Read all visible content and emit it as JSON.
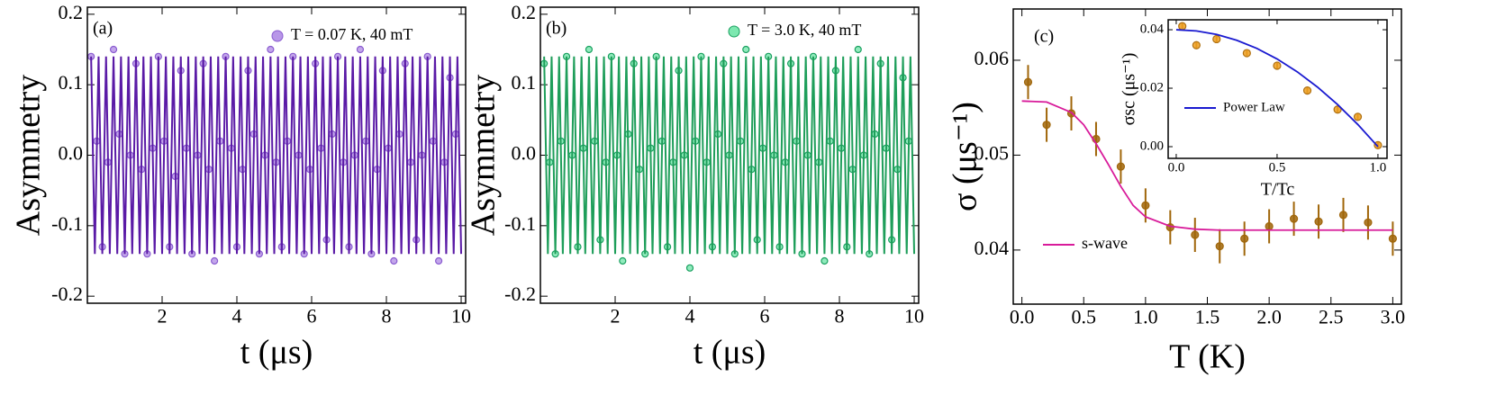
{
  "chart_data": [
    {
      "type": "scatter",
      "panel_label": "(a)",
      "y_label": "Asymmetry",
      "x_label": "t (μs)",
      "xlim": [
        0,
        10.12
      ],
      "ylim": [
        -0.21,
        0.21
      ],
      "xticks": [
        2,
        4,
        6,
        8,
        10
      ],
      "yticks": [
        0.2,
        0.1,
        {
          "value": 0,
          "label": "0.0"
        },
        -0.1,
        -0.2
      ],
      "series": [
        {
          "name": "T = 0.07 K, 40 mT",
          "mode": "markers",
          "color": "#b896e8",
          "edge": "#8a5cd0",
          "x": [
            0.1,
            0.25,
            0.4,
            0.55,
            0.7,
            0.85,
            1,
            1.15,
            1.3,
            1.45,
            1.6,
            1.75,
            1.9,
            2.05,
            2.2,
            2.35,
            2.5,
            2.65,
            2.8,
            2.95,
            3.1,
            3.25,
            3.4,
            3.55,
            3.7,
            3.85,
            4,
            4.15,
            4.3,
            4.45,
            4.6,
            4.75,
            4.9,
            5.05,
            5.2,
            5.35,
            5.5,
            5.65,
            5.8,
            5.95,
            6.1,
            6.25,
            6.4,
            6.55,
            6.7,
            6.85,
            7,
            7.15,
            7.3,
            7.45,
            7.6,
            7.75,
            7.9,
            8.05,
            8.2,
            8.35,
            8.5,
            8.65,
            8.8,
            8.95,
            9.1,
            9.25,
            9.4,
            9.55,
            9.7,
            9.85
          ],
          "values": [
            0.14,
            0.02,
            -0.13,
            -0.01,
            0.15,
            0.03,
            -0.14,
            0.0,
            0.13,
            -0.02,
            -0.14,
            0.01,
            0.14,
            0.02,
            -0.13,
            -0.03,
            0.12,
            0.01,
            -0.14,
            0.0,
            0.13,
            -0.02,
            -0.15,
            0.02,
            0.14,
            0.01,
            -0.13,
            -0.02,
            0.12,
            0.03,
            -0.14,
            0.0,
            0.15,
            -0.01,
            -0.13,
            0.02,
            0.14,
            0.0,
            -0.14,
            -0.02,
            0.13,
            0.01,
            -0.12,
            0.03,
            0.14,
            -0.01,
            -0.13,
            0.0,
            0.15,
            0.02,
            -0.14,
            -0.02,
            0.12,
            0.01,
            -0.15,
            0.03,
            0.13,
            -0.01,
            -0.12,
            0.0,
            0.14,
            0.02,
            -0.15,
            -0.01,
            0.11,
            0.03
          ]
        },
        {
          "mode": "line",
          "color": "#5a1aa6",
          "x": [
            0.1,
            0.2,
            0.3,
            0.4,
            0.5,
            0.6,
            0.7,
            0.8,
            0.9,
            1,
            1.1,
            1.2,
            1.3,
            1.4,
            1.5,
            1.6,
            1.7,
            1.8,
            1.9,
            2,
            2.1,
            2.2,
            2.3,
            2.4,
            2.5,
            2.6,
            2.7,
            2.8,
            2.9,
            3,
            3.1,
            3.2,
            3.3,
            3.4,
            3.5,
            3.6,
            3.7,
            3.8,
            3.9,
            4,
            4.1,
            4.2,
            4.3,
            4.4,
            4.5,
            4.6,
            4.7,
            4.8,
            4.9,
            5,
            5.1,
            5.2,
            5.3,
            5.4,
            5.5,
            5.6,
            5.7,
            5.8,
            5.9,
            6,
            6.1,
            6.2,
            6.3,
            6.4,
            6.5,
            6.6,
            6.7,
            6.8,
            6.9,
            7,
            7.1,
            7.2,
            7.3,
            7.4,
            7.5,
            7.6,
            7.7,
            7.8,
            7.9,
            8,
            8.1,
            8.2,
            8.3,
            8.4,
            8.5,
            8.6,
            8.7,
            8.8,
            8.9,
            9,
            9.1,
            9.2,
            9.3,
            9.4,
            9.5,
            9.6,
            9.7,
            9.8,
            9.9,
            10
          ],
          "values": [
            0.14,
            -0.14,
            0.14,
            -0.14,
            0.14,
            -0.14,
            0.14,
            -0.14,
            0.14,
            -0.14,
            0.14,
            -0.14,
            0.14,
            -0.14,
            0.14,
            -0.14,
            0.14,
            -0.14,
            0.14,
            -0.14,
            0.14,
            -0.14,
            0.14,
            -0.14,
            0.14,
            -0.14,
            0.14,
            -0.14,
            0.14,
            -0.14,
            0.14,
            -0.14,
            0.14,
            -0.14,
            0.14,
            -0.14,
            0.14,
            -0.14,
            0.14,
            -0.14,
            0.14,
            -0.14,
            0.14,
            -0.14,
            0.14,
            -0.14,
            0.14,
            -0.14,
            0.14,
            -0.14,
            0.14,
            -0.14,
            0.14,
            -0.14,
            0.14,
            -0.14,
            0.14,
            -0.14,
            0.14,
            -0.14,
            0.14,
            -0.14,
            0.14,
            -0.14,
            0.14,
            -0.14,
            0.14,
            -0.14,
            0.14,
            -0.14,
            0.14,
            -0.14,
            0.14,
            -0.14,
            0.14,
            -0.14,
            0.14,
            -0.14,
            0.14,
            -0.14,
            0.14,
            -0.14,
            0.14,
            -0.14,
            0.14,
            -0.14,
            0.14,
            -0.14,
            0.14,
            -0.14,
            0.14,
            -0.14,
            0.14,
            -0.14,
            0.14,
            -0.14,
            0.14,
            -0.14,
            0.14,
            -0.14
          ]
        }
      ]
    },
    {
      "type": "scatter",
      "panel_label": "(b)",
      "y_label": "Asymmetry",
      "x_label": "t (μs)",
      "xlim": [
        0,
        10.12
      ],
      "ylim": [
        -0.21,
        0.21
      ],
      "xticks": [
        2,
        4,
        6,
        8,
        10
      ],
      "yticks": [
        0.2,
        0.1,
        {
          "value": 0,
          "label": "0.0"
        },
        -0.1,
        -0.2
      ],
      "series": [
        {
          "name": "T = 3.0 K, 40 mT",
          "mode": "markers",
          "color": "#7de8b0",
          "edge": "#1aa060",
          "x": [
            0.1,
            0.25,
            0.4,
            0.55,
            0.7,
            0.85,
            1,
            1.15,
            1.3,
            1.45,
            1.6,
            1.75,
            1.9,
            2.05,
            2.2,
            2.35,
            2.5,
            2.65,
            2.8,
            2.95,
            3.1,
            3.25,
            3.4,
            3.55,
            3.7,
            3.85,
            4,
            4.15,
            4.3,
            4.45,
            4.6,
            4.75,
            4.9,
            5.05,
            5.2,
            5.35,
            5.5,
            5.65,
            5.8,
            5.95,
            6.1,
            6.25,
            6.4,
            6.55,
            6.7,
            6.85,
            7,
            7.15,
            7.3,
            7.45,
            7.6,
            7.75,
            7.9,
            8.05,
            8.2,
            8.35,
            8.5,
            8.65,
            8.8,
            8.95,
            9.1,
            9.25,
            9.4,
            9.55,
            9.7,
            9.85
          ],
          "values": [
            0.13,
            -0.01,
            -0.14,
            0.02,
            0.14,
            0.0,
            -0.13,
            0.01,
            0.15,
            0.02,
            -0.12,
            -0.01,
            0.14,
            0.0,
            -0.15,
            0.03,
            0.13,
            -0.02,
            -0.14,
            0.01,
            0.14,
            0.02,
            -0.13,
            -0.01,
            0.12,
            0.0,
            -0.16,
            0.02,
            0.14,
            -0.01,
            -0.13,
            0.03,
            0.13,
            0.0,
            -0.14,
            0.02,
            0.15,
            -0.02,
            -0.12,
            0.01,
            0.14,
            0.0,
            -0.13,
            -0.01,
            0.13,
            0.02,
            -0.14,
            0.0,
            0.14,
            -0.01,
            -0.15,
            0.02,
            0.12,
            0.01,
            -0.13,
            -0.02,
            0.15,
            0.0,
            -0.14,
            0.03,
            0.13,
            0.01,
            -0.12,
            -0.02,
            0.11,
            0.02
          ]
        },
        {
          "mode": "line",
          "color": "#1e9e5a",
          "x": [
            0.1,
            0.2,
            0.3,
            0.4,
            0.5,
            0.6,
            0.7,
            0.8,
            0.9,
            1,
            1.1,
            1.2,
            1.3,
            1.4,
            1.5,
            1.6,
            1.7,
            1.8,
            1.9,
            2,
            2.1,
            2.2,
            2.3,
            2.4,
            2.5,
            2.6,
            2.7,
            2.8,
            2.9,
            3,
            3.1,
            3.2,
            3.3,
            3.4,
            3.5,
            3.6,
            3.7,
            3.8,
            3.9,
            4,
            4.1,
            4.2,
            4.3,
            4.4,
            4.5,
            4.6,
            4.7,
            4.8,
            4.9,
            5,
            5.1,
            5.2,
            5.3,
            5.4,
            5.5,
            5.6,
            5.7,
            5.8,
            5.9,
            6,
            6.1,
            6.2,
            6.3,
            6.4,
            6.5,
            6.6,
            6.7,
            6.8,
            6.9,
            7,
            7.1,
            7.2,
            7.3,
            7.4,
            7.5,
            7.6,
            7.7,
            7.8,
            7.9,
            8,
            8.1,
            8.2,
            8.3,
            8.4,
            8.5,
            8.6,
            8.7,
            8.8,
            8.9,
            9,
            9.1,
            9.2,
            9.3,
            9.4,
            9.5,
            9.6,
            9.7,
            9.8,
            9.9,
            10
          ],
          "values": [
            0.14,
            -0.14,
            0.14,
            -0.14,
            0.14,
            -0.14,
            0.14,
            -0.14,
            0.14,
            -0.14,
            0.14,
            -0.14,
            0.14,
            -0.14,
            0.14,
            -0.14,
            0.14,
            -0.14,
            0.14,
            -0.14,
            0.14,
            -0.14,
            0.14,
            -0.14,
            0.14,
            -0.14,
            0.14,
            -0.14,
            0.14,
            -0.14,
            0.14,
            -0.14,
            0.14,
            -0.14,
            0.14,
            -0.14,
            0.14,
            -0.14,
            0.14,
            -0.14,
            0.14,
            -0.14,
            0.14,
            -0.14,
            0.14,
            -0.14,
            0.14,
            -0.14,
            0.14,
            -0.14,
            0.14,
            -0.14,
            0.14,
            -0.14,
            0.14,
            -0.14,
            0.14,
            -0.14,
            0.14,
            -0.14,
            0.14,
            -0.14,
            0.14,
            -0.14,
            0.14,
            -0.14,
            0.14,
            -0.14,
            0.14,
            -0.14,
            0.14,
            -0.14,
            0.14,
            -0.14,
            0.14,
            -0.14,
            0.14,
            -0.14,
            0.14,
            -0.14,
            0.14,
            -0.14,
            0.14,
            -0.14,
            0.14,
            -0.14,
            0.14,
            -0.14,
            0.14,
            -0.14,
            0.14,
            -0.14,
            0.14,
            -0.14,
            0.14,
            -0.14,
            0.14,
            -0.14,
            0.14,
            -0.14
          ]
        }
      ]
    },
    {
      "type": "scatter",
      "panel_label": "(c)",
      "y_label": "σ (μs⁻¹)",
      "x_label": "T (K)",
      "xlim": [
        -0.07,
        3.07
      ],
      "ylim": [
        0.0343,
        0.0654
      ],
      "xticks": [
        {
          "value": 0,
          "label": "0.0"
        },
        0.5,
        {
          "value": 1,
          "label": "1.0"
        },
        1.5,
        {
          "value": 2,
          "label": "2.0"
        },
        2.5,
        {
          "value": 3,
          "label": "3.0"
        }
      ],
      "yticks": [
        0.04,
        0.05,
        0.06
      ],
      "series": [
        {
          "mode": "markers",
          "color": "#a0660a",
          "edge": "#a0660a",
          "x": [
            0.05,
            0.2,
            0.4,
            0.6,
            0.8,
            1.0,
            1.2,
            1.4,
            1.6,
            1.8,
            2.0,
            2.2,
            2.4,
            2.6,
            2.8,
            3.0
          ],
          "values": [
            0.0577,
            0.0532,
            0.0544,
            0.0517,
            0.0488,
            0.0447,
            0.0424,
            0.0416,
            0.0404,
            0.0412,
            0.0425,
            0.0433,
            0.043,
            0.0437,
            0.0429,
            0.0412
          ],
          "errors": [
            0.0018,
            0.0018,
            0.0018,
            0.0018,
            0.0018,
            0.0018,
            0.0018,
            0.0018,
            0.0018,
            0.0018,
            0.0018,
            0.0018,
            0.0018,
            0.0018,
            0.0018,
            0.0018
          ]
        },
        {
          "name": "s-wave",
          "mode": "line",
          "color": "#d81b9a",
          "x": [
            0,
            0.2,
            0.4,
            0.5,
            0.6,
            0.7,
            0.8,
            0.9,
            1.0,
            1.2,
            1.4,
            1.6,
            2.0,
            3.0
          ],
          "values": [
            0.0557,
            0.0556,
            0.0545,
            0.0532,
            0.0512,
            0.049,
            0.0467,
            0.0447,
            0.0435,
            0.0425,
            0.0422,
            0.0421,
            0.0421,
            0.0421
          ]
        }
      ]
    },
    {
      "type": "scatter",
      "x_label": "T/Tc",
      "y_label": "σsc (μs⁻¹)",
      "xlim": [
        -0.04,
        1.045
      ],
      "ylim": [
        -0.004,
        0.0434
      ],
      "xticks": [
        {
          "value": 0,
          "label": "0.0"
        },
        0.5,
        {
          "value": 1,
          "label": "1.0"
        }
      ],
      "yticks": [
        {
          "value": 0,
          "label": "0.00"
        },
        {
          "value": 0.02,
          "label": "0.02"
        },
        {
          "value": 0.04,
          "label": "0.04"
        }
      ],
      "series": [
        {
          "mode": "markers",
          "color": "#f0a020",
          "edge": "#b07010",
          "x": [
            0.03,
            0.1,
            0.2,
            0.35,
            0.5,
            0.65,
            0.8,
            0.9,
            1.0
          ],
          "values": [
            0.0412,
            0.0347,
            0.0368,
            0.032,
            0.0277,
            0.0192,
            0.0127,
            0.0102,
            0.0005
          ],
          "errors": [
            0.001,
            0.001,
            0.001,
            0.001,
            0.001,
            0.001,
            0.001,
            0.001,
            0.001
          ]
        },
        {
          "name": "Power Law",
          "mode": "line",
          "color": "#1a1ad0",
          "x": [
            0,
            0.1,
            0.2,
            0.3,
            0.4,
            0.5,
            0.6,
            0.7,
            0.8,
            0.9,
            1.0
          ],
          "values": [
            0.04,
            0.0396,
            0.0384,
            0.0364,
            0.0336,
            0.03,
            0.0256,
            0.0204,
            0.0144,
            0.0076,
            0.0
          ]
        }
      ]
    }
  ]
}
